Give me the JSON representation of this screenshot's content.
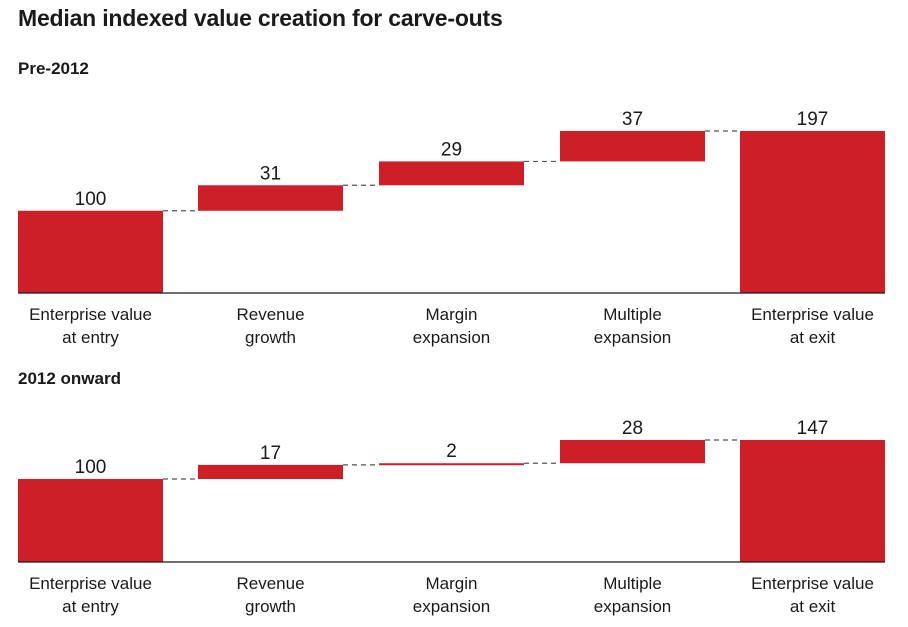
{
  "title": "Median indexed value creation for carve-outs",
  "colors": {
    "bar": "#CC1F27",
    "connector": "#555555",
    "baseline": "#1a1a1a",
    "text": "#1a1a1a"
  },
  "chart_data": [
    {
      "type": "bar",
      "subtype": "waterfall",
      "title": "Pre-2012",
      "categories": [
        [
          "Enterprise value",
          "at entry"
        ],
        [
          "Revenue",
          "growth"
        ],
        [
          "Margin",
          "expansion"
        ],
        [
          "Multiple",
          "expansion"
        ],
        [
          "Enterprise value",
          "at exit"
        ]
      ],
      "values": [
        100,
        31,
        29,
        37,
        197
      ],
      "kinds": [
        "total",
        "increase",
        "increase",
        "increase",
        "total"
      ],
      "ylim": [
        0,
        197
      ]
    },
    {
      "type": "bar",
      "subtype": "waterfall",
      "title": "2012 onward",
      "categories": [
        [
          "Enterprise value",
          "at entry"
        ],
        [
          "Revenue",
          "growth"
        ],
        [
          "Margin",
          "expansion"
        ],
        [
          "Multiple",
          "expansion"
        ],
        [
          "Enterprise value",
          "at exit"
        ]
      ],
      "values": [
        100,
        17,
        2,
        28,
        147
      ],
      "kinds": [
        "total",
        "increase",
        "increase",
        "increase",
        "total"
      ],
      "ylim": [
        0,
        147
      ]
    }
  ]
}
